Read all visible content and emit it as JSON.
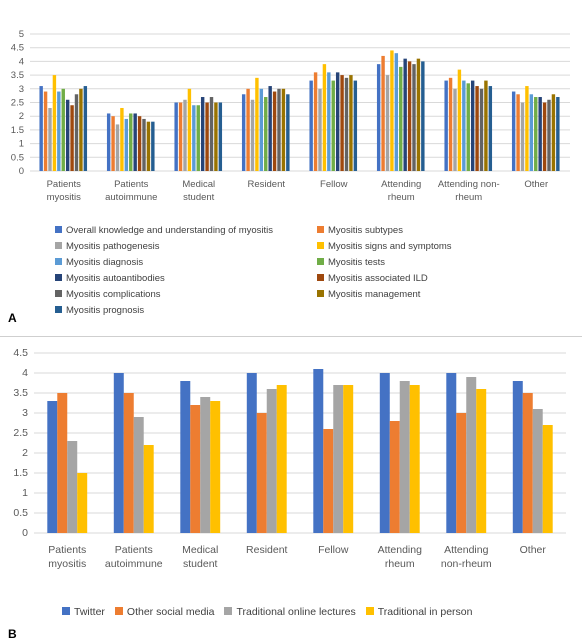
{
  "panels": {
    "a_letter": "A",
    "b_letter": "B"
  },
  "chart_data": [
    {
      "type": "bar",
      "categories": [
        [
          "Patients",
          "myositis"
        ],
        [
          "Patients",
          "autoimmune"
        ],
        [
          "Medical",
          "student"
        ],
        [
          "Resident"
        ],
        [
          "Fellow"
        ],
        [
          "Attending",
          "rheum"
        ],
        [
          "Attending non-",
          "rheum"
        ],
        [
          "Other"
        ]
      ],
      "ylim": [
        0,
        5
      ],
      "yticks": [
        0,
        0.5,
        1,
        1.5,
        2,
        2.5,
        3,
        3.5,
        4,
        4.5,
        5
      ],
      "ytick_labels": [
        "0",
        "0.5",
        "1",
        "1.5",
        "2",
        "2.5",
        "3",
        "3.5",
        "4",
        "4.5",
        "5"
      ],
      "grid": true,
      "legend_position": "bottom",
      "series": [
        {
          "name": "Overall knowledge and understanding of myositis",
          "color": "#4472c4",
          "values": [
            3.1,
            2.1,
            2.5,
            2.8,
            3.3,
            3.9,
            3.3,
            2.9
          ]
        },
        {
          "name": "Myositis subtypes",
          "color": "#ed7d31",
          "values": [
            2.9,
            2.0,
            2.5,
            3.0,
            3.6,
            4.2,
            3.4,
            2.8
          ]
        },
        {
          "name": "Myositis pathogenesis",
          "color": "#a5a5a5",
          "values": [
            2.3,
            1.7,
            2.6,
            2.6,
            3.0,
            3.5,
            3.0,
            2.5
          ]
        },
        {
          "name": "Myositis signs and symptoms",
          "color": "#ffc000",
          "values": [
            3.5,
            2.3,
            3.0,
            3.4,
            3.9,
            4.4,
            3.7,
            3.1
          ]
        },
        {
          "name": "Myositis diagnosis",
          "color": "#5b9bd5",
          "values": [
            2.9,
            1.9,
            2.4,
            3.0,
            3.6,
            4.3,
            3.3,
            2.8
          ]
        },
        {
          "name": "Myositis tests",
          "color": "#70ad47",
          "values": [
            3.0,
            2.1,
            2.4,
            2.7,
            3.3,
            3.8,
            3.2,
            2.7
          ]
        },
        {
          "name": "Myositis autoantibodies",
          "color": "#264478",
          "values": [
            2.6,
            2.1,
            2.7,
            3.1,
            3.6,
            4.1,
            3.3,
            2.7
          ]
        },
        {
          "name": "Myositis associated ILD",
          "color": "#9e480e",
          "values": [
            2.4,
            2.0,
            2.5,
            2.9,
            3.5,
            4.0,
            3.1,
            2.5
          ]
        },
        {
          "name": "Myositis complications",
          "color": "#636363",
          "values": [
            2.8,
            1.9,
            2.7,
            3.0,
            3.4,
            3.9,
            3.0,
            2.6
          ]
        },
        {
          "name": "Myositis management",
          "color": "#997300",
          "values": [
            3.0,
            1.8,
            2.5,
            3.0,
            3.5,
            4.1,
            3.3,
            2.8
          ]
        },
        {
          "name": "Myositis prognosis",
          "color": "#255e91",
          "values": [
            3.1,
            1.8,
            2.5,
            2.8,
            3.3,
            4.0,
            3.1,
            2.7
          ]
        }
      ]
    },
    {
      "type": "bar",
      "categories": [
        [
          "Patients",
          "myositis"
        ],
        [
          "Patients",
          "autoimmune"
        ],
        [
          "Medical",
          "student"
        ],
        [
          "Resident"
        ],
        [
          "Fellow"
        ],
        [
          "Attending",
          "rheum"
        ],
        [
          "Attending",
          "non-rheum"
        ],
        [
          "Other"
        ]
      ],
      "ylim": [
        0,
        4.5
      ],
      "yticks": [
        0,
        0.5,
        1,
        1.5,
        2,
        2.5,
        3,
        3.5,
        4,
        4.5
      ],
      "ytick_labels": [
        "0",
        "0.5",
        "1",
        "1.5",
        "2",
        "2.5",
        "3",
        "3.5",
        "4",
        "4.5"
      ],
      "grid": true,
      "legend_position": "bottom",
      "series": [
        {
          "name": "Twitter",
          "color": "#4472c4",
          "values": [
            3.3,
            4.0,
            3.8,
            4.0,
            4.1,
            4.0,
            4.0,
            3.8
          ]
        },
        {
          "name": "Other social media",
          "color": "#ed7d31",
          "values": [
            3.5,
            3.5,
            3.2,
            3.0,
            2.6,
            2.8,
            3.0,
            3.5
          ]
        },
        {
          "name": "Traditional online lectures",
          "color": "#a5a5a5",
          "values": [
            2.3,
            2.9,
            3.4,
            3.6,
            3.7,
            3.8,
            3.9,
            3.1
          ]
        },
        {
          "name": "Traditional in person",
          "color": "#ffc000",
          "values": [
            1.5,
            2.2,
            3.3,
            3.7,
            3.7,
            3.7,
            3.6,
            2.7
          ]
        }
      ]
    }
  ]
}
